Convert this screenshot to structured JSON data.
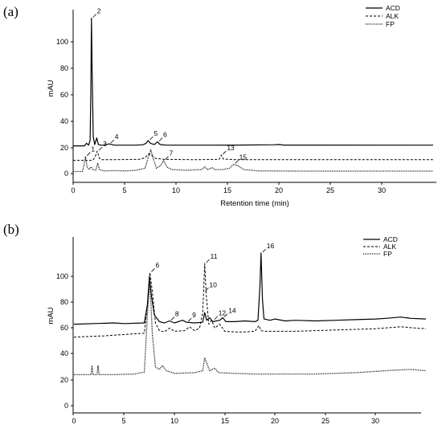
{
  "chart_data": [
    {
      "panel_label": "(a)",
      "type": "line",
      "xlabel": "Retention time (min)",
      "ylabel": "mAU",
      "xlim": [
        0,
        35
      ],
      "ylim": [
        -5,
        122
      ],
      "x_ticks": [
        0,
        5,
        10,
        15,
        20,
        25,
        30
      ],
      "y_ticks": [
        0,
        20,
        40,
        60,
        80,
        100
      ],
      "legend_position": "top-right",
      "series": [
        {
          "name": "ACD",
          "style": "solid",
          "points": [
            [
              0,
              21
            ],
            [
              1.1,
              21
            ],
            [
              1.3,
              23
            ],
            [
              1.5,
              21.5
            ],
            [
              1.65,
              25
            ],
            [
              1.72,
              60
            ],
            [
              1.78,
              118
            ],
            [
              1.84,
              80
            ],
            [
              1.95,
              28
            ],
            [
              2.1,
              22
            ],
            [
              2.3,
              27
            ],
            [
              2.45,
              22
            ],
            [
              2.7,
              21.5
            ],
            [
              3.0,
              21.5
            ],
            [
              3.5,
              22.5
            ],
            [
              4.0,
              21.5
            ],
            [
              5,
              21.5
            ],
            [
              6,
              21.5
            ],
            [
              6.8,
              21.8
            ],
            [
              7.1,
              23
            ],
            [
              7.3,
              25
            ],
            [
              7.5,
              23
            ],
            [
              7.9,
              22
            ],
            [
              8.2,
              24
            ],
            [
              8.45,
              22
            ],
            [
              9,
              21.5
            ],
            [
              12,
              21.5
            ],
            [
              16,
              21.6
            ],
            [
              19.5,
              21.8
            ],
            [
              20,
              22
            ],
            [
              20.5,
              21.6
            ],
            [
              35,
              21.5
            ]
          ]
        },
        {
          "name": "ALK",
          "style": "dashed",
          "points": [
            [
              0,
              10
            ],
            [
              1.9,
              10
            ],
            [
              2.1,
              12
            ],
            [
              2.35,
              17
            ],
            [
              2.55,
              11.5
            ],
            [
              2.8,
              10.5
            ],
            [
              4,
              10.5
            ],
            [
              6.5,
              10.8
            ],
            [
              7.0,
              12
            ],
            [
              7.35,
              15
            ],
            [
              7.6,
              14
            ],
            [
              8.0,
              11.5
            ],
            [
              8.8,
              10.8
            ],
            [
              12,
              10.5
            ],
            [
              14.2,
              10.8
            ],
            [
              14.4,
              14
            ],
            [
              14.6,
              11
            ],
            [
              16,
              10.5
            ],
            [
              35,
              10.5
            ]
          ]
        },
        {
          "name": "FP",
          "style": "dotted",
          "points": [
            [
              0,
              1.5
            ],
            [
              0.9,
              1.5
            ],
            [
              1.05,
              6
            ],
            [
              1.2,
              13
            ],
            [
              1.35,
              5
            ],
            [
              1.55,
              3
            ],
            [
              1.75,
              5
            ],
            [
              1.9,
              3
            ],
            [
              2.2,
              2.5
            ],
            [
              2.4,
              8
            ],
            [
              2.55,
              3
            ],
            [
              3,
              2
            ],
            [
              4,
              2.2
            ],
            [
              5,
              2
            ],
            [
              6,
              2.3
            ],
            [
              7.0,
              4
            ],
            [
              7.3,
              12
            ],
            [
              7.55,
              18
            ],
            [
              7.8,
              11
            ],
            [
              8.1,
              4
            ],
            [
              8.5,
              6
            ],
            [
              8.8,
              10
            ],
            [
              9.1,
              5
            ],
            [
              9.6,
              3
            ],
            [
              11,
              2.5
            ],
            [
              12.5,
              3
            ],
            [
              12.8,
              5
            ],
            [
              13.1,
              3
            ],
            [
              13.5,
              4.5
            ],
            [
              13.8,
              3
            ],
            [
              14.5,
              3
            ],
            [
              15.2,
              4
            ],
            [
              15.6,
              7
            ],
            [
              16.0,
              6
            ],
            [
              16.6,
              3
            ],
            [
              18,
              2
            ],
            [
              22,
              1.8
            ],
            [
              28,
              1.8
            ],
            [
              35,
              1.8
            ]
          ]
        }
      ],
      "peak_labels": [
        {
          "label": "1",
          "x": 1.2,
          "y": 13
        },
        {
          "label": "2",
          "x": 1.78,
          "y": 118
        },
        {
          "label": "3",
          "x": 2.35,
          "y": 17
        },
        {
          "label": "4",
          "x": 3.5,
          "y": 22.5
        },
        {
          "label": "5",
          "x": 7.3,
          "y": 25
        },
        {
          "label": "6",
          "x": 8.2,
          "y": 24
        },
        {
          "label": "7",
          "x": 8.8,
          "y": 10
        },
        {
          "label": "13",
          "x": 14.4,
          "y": 14
        },
        {
          "label": "15",
          "x": 15.6,
          "y": 7
        }
      ]
    },
    {
      "panel_label": "(b)",
      "type": "line",
      "xlabel": "",
      "ylabel": "mAU",
      "xlim": [
        0,
        35
      ],
      "ylim": [
        -5,
        122
      ],
      "x_ticks": [
        0,
        5,
        10,
        15,
        20,
        25,
        30
      ],
      "y_ticks": [
        0,
        20,
        40,
        60,
        80,
        100
      ],
      "legend_position": "top-right",
      "series": [
        {
          "name": "ACD",
          "style": "solid",
          "points": [
            [
              0,
              63
            ],
            [
              2,
              63.5
            ],
            [
              4,
              64
            ],
            [
              5,
              63.5
            ],
            [
              7.0,
              64
            ],
            [
              7.3,
              78
            ],
            [
              7.5,
              100
            ],
            [
              7.7,
              85
            ],
            [
              8.0,
              70
            ],
            [
              8.5,
              65
            ],
            [
              9,
              64
            ],
            [
              9.5,
              65.5
            ],
            [
              10,
              64
            ],
            [
              10.8,
              66
            ],
            [
              11.2,
              64.5
            ],
            [
              12,
              64
            ],
            [
              12.8,
              64.5
            ],
            [
              13.0,
              72
            ],
            [
              13.2,
              66
            ],
            [
              13.5,
              68
            ],
            [
              13.8,
              65
            ],
            [
              14.5,
              66
            ],
            [
              14.8,
              68
            ],
            [
              15.1,
              65
            ],
            [
              16,
              65
            ],
            [
              17,
              65.5
            ],
            [
              18,
              65
            ],
            [
              18.3,
              66
            ],
            [
              18.5,
              93
            ],
            [
              18.6,
              118
            ],
            [
              18.75,
              82
            ],
            [
              18.9,
              67
            ],
            [
              19.5,
              66
            ],
            [
              20,
              67
            ],
            [
              21,
              65.5
            ],
            [
              22,
              66
            ],
            [
              24,
              65.5
            ],
            [
              26,
              66
            ],
            [
              28,
              66.5
            ],
            [
              30,
              67
            ],
            [
              31,
              67.5
            ],
            [
              32.5,
              68.5
            ],
            [
              33.5,
              67.5
            ],
            [
              35,
              67
            ]
          ]
        },
        {
          "name": "ALK",
          "style": "dashed",
          "points": [
            [
              0,
              53
            ],
            [
              3,
              54
            ],
            [
              5,
              55
            ],
            [
              7.0,
              56
            ],
            [
              7.3,
              78
            ],
            [
              7.55,
              103
            ],
            [
              7.8,
              88
            ],
            [
              8.1,
              64
            ],
            [
              8.5,
              58
            ],
            [
              9,
              57
            ],
            [
              9.5,
              60
            ],
            [
              10,
              57.5
            ],
            [
              11,
              58
            ],
            [
              11.5,
              61
            ],
            [
              12,
              58
            ],
            [
              12.5,
              60
            ],
            [
              12.8,
              72
            ],
            [
              12.9,
              88
            ],
            [
              13.0,
              110
            ],
            [
              13.15,
              86
            ],
            [
              13.4,
              63
            ],
            [
              13.7,
              66
            ],
            [
              14,
              60
            ],
            [
              14.5,
              63
            ],
            [
              15,
              57.5
            ],
            [
              16,
              57
            ],
            [
              17,
              57
            ],
            [
              18,
              57.5
            ],
            [
              18.4,
              62
            ],
            [
              18.6,
              58
            ],
            [
              19,
              57.5
            ],
            [
              20,
              57.5
            ],
            [
              22,
              57.5
            ],
            [
              24,
              58
            ],
            [
              26,
              58.5
            ],
            [
              28,
              59
            ],
            [
              30,
              59.5
            ],
            [
              32.5,
              61
            ],
            [
              34,
              60
            ],
            [
              35,
              59.5
            ]
          ]
        },
        {
          "name": "FP",
          "style": "dotted",
          "points": [
            [
              0,
              24
            ],
            [
              1.7,
              24
            ],
            [
              1.8,
              31
            ],
            [
              1.9,
              24
            ],
            [
              2.3,
              24
            ],
            [
              2.4,
              31
            ],
            [
              2.5,
              24
            ],
            [
              4,
              24
            ],
            [
              6,
              24.5
            ],
            [
              7.0,
              26
            ],
            [
              7.3,
              70
            ],
            [
              7.55,
              96
            ],
            [
              7.8,
              55
            ],
            [
              8.1,
              30
            ],
            [
              8.5,
              28
            ],
            [
              8.8,
              31
            ],
            [
              9.2,
              27
            ],
            [
              10,
              25
            ],
            [
              12,
              25.5
            ],
            [
              12.8,
              27
            ],
            [
              13.0,
              37
            ],
            [
              13.2,
              33
            ],
            [
              13.5,
              27
            ],
            [
              14,
              29
            ],
            [
              14.4,
              25.5
            ],
            [
              16,
              25
            ],
            [
              18,
              24.5
            ],
            [
              20,
              24.5
            ],
            [
              24,
              24.5
            ],
            [
              28,
              25.5
            ],
            [
              32,
              27.5
            ],
            [
              33.5,
              28
            ],
            [
              35,
              27
            ]
          ]
        }
      ],
      "peak_labels": [
        {
          "label": "6",
          "x": 7.55,
          "y": 103
        },
        {
          "label": "8",
          "x": 9.5,
          "y": 65.5
        },
        {
          "label": "9",
          "x": 11.2,
          "y": 64.5
        },
        {
          "label": "10",
          "x": 12.9,
          "y": 88
        },
        {
          "label": "11",
          "x": 13.0,
          "y": 110
        },
        {
          "label": "12",
          "x": 13.8,
          "y": 66
        },
        {
          "label": "14",
          "x": 14.8,
          "y": 68
        },
        {
          "label": "16",
          "x": 18.6,
          "y": 118
        }
      ]
    }
  ]
}
